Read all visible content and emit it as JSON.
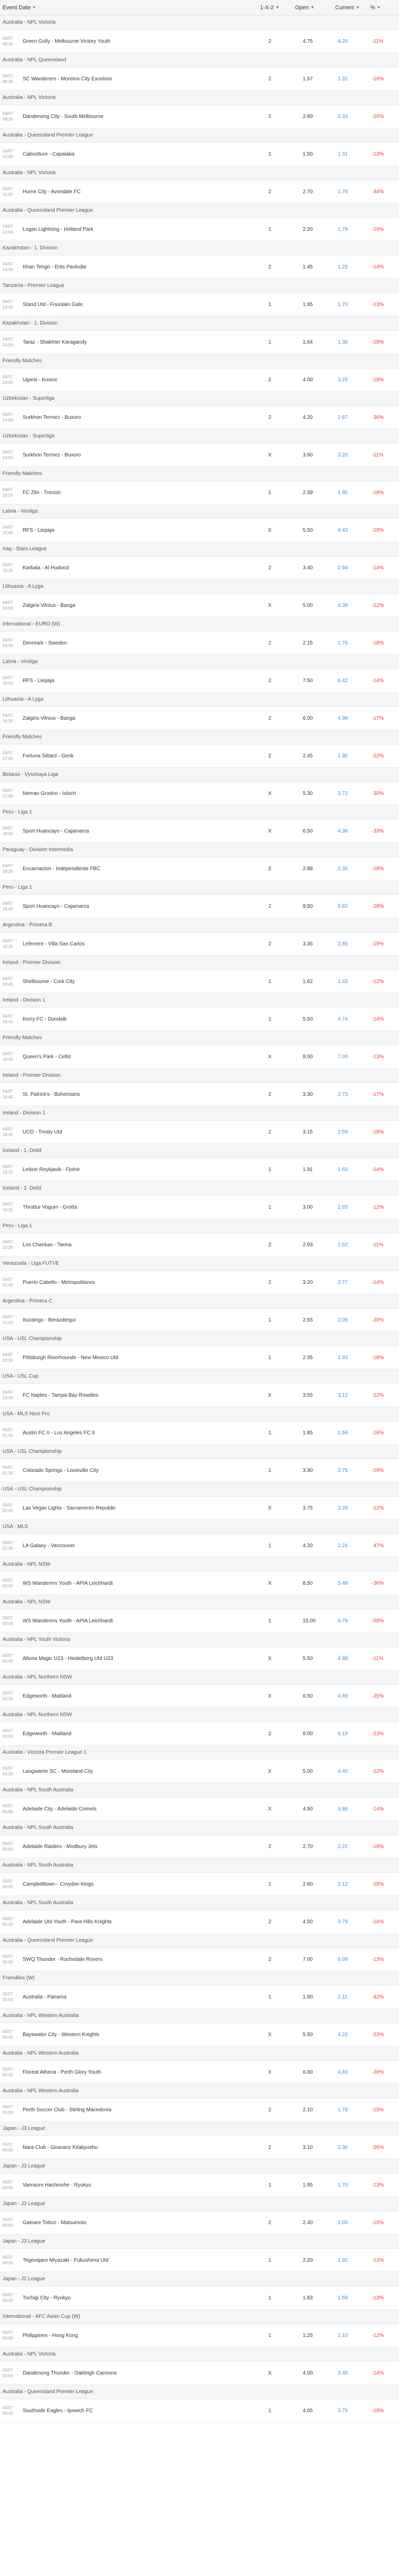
{
  "header": {
    "event_date": "Event Date",
    "type": "1-X-2",
    "open": "Open",
    "current": "Current",
    "pct": "%"
  },
  "groups": [
    {
      "league": "Australia - NPL Victoria",
      "rows": [
        {
          "date": "04/07",
          "time": "08:30",
          "event": "Green Gully - Melbourne Victory Youth",
          "type": "2",
          "open": "4.75",
          "current": "4.25",
          "pct": "-11%"
        }
      ]
    },
    {
      "league": "Australia - NPL Queensland",
      "rows": [
        {
          "date": "04/07",
          "time": "08:30",
          "event": "SC Wanderers - Moreton City Excelsior",
          "type": "2",
          "open": "1.57",
          "current": "1.31",
          "pct": "-16%"
        }
      ]
    },
    {
      "league": "Australia - NPL Victoria",
      "rows": [
        {
          "date": "04/07",
          "time": "08:30",
          "event": "Dandenong City - South Melbourne",
          "type": "2",
          "open": "2.90",
          "current": "2.33",
          "pct": "-20%"
        }
      ]
    },
    {
      "league": "Australia - Queensland Premier League",
      "rows": [
        {
          "date": "04/07",
          "time": "10:00",
          "event": "Caboolture - Capalaba",
          "type": "1",
          "open": "1.50",
          "current": "1.31",
          "pct": "-13%"
        }
      ]
    },
    {
      "league": "Australia - NPL Victoria",
      "rows": [
        {
          "date": "04/07",
          "time": "11:00",
          "event": "Hume City - Avondale FC",
          "type": "2",
          "open": "2.70",
          "current": "1.78",
          "pct": "-34%"
        }
      ]
    },
    {
      "league": "Australia - Queensland Premier League",
      "rows": [
        {
          "date": "04/07",
          "time": "12:00",
          "event": "Logan Lightning - Holland Park",
          "type": "1",
          "open": "2.20",
          "current": "1.79",
          "pct": "-19%"
        }
      ]
    },
    {
      "league": "Kazakhstan - 1. Division",
      "rows": [
        {
          "date": "04/07",
          "time": "13:00",
          "event": "Khan Tengri - Ertis Pavlodar",
          "type": "2",
          "open": "1.45",
          "current": "1.25",
          "pct": "-14%"
        }
      ]
    },
    {
      "league": "Tanzania - Premier League",
      "rows": [
        {
          "date": "04/07",
          "time": "13:00",
          "event": "Stand Utd - Fountain Gate",
          "type": "1",
          "open": "1.95",
          "current": "1.70",
          "pct": "-13%"
        }
      ]
    },
    {
      "league": "Kazakhstan - 1. Division",
      "rows": [
        {
          "date": "04/07",
          "time": "14:00",
          "event": "Taraz - Shakhter Karagandy",
          "type": "1",
          "open": "1.84",
          "current": "1.30",
          "pct": "-29%"
        }
      ]
    },
    {
      "league": "Friendly Matches",
      "rows": [
        {
          "date": "04/07",
          "time": "14:00",
          "event": "Ujpest - Kosice",
          "type": "2",
          "open": "4.00",
          "current": "3.25",
          "pct": "-19%"
        }
      ]
    },
    {
      "league": "Uzbekistan - Superliga",
      "rows": [
        {
          "date": "04/07",
          "time": "14:00",
          "event": "Surkhon Termez - Buxoro",
          "type": "2",
          "open": "4.20",
          "current": "2.67",
          "pct": "-36%"
        }
      ]
    },
    {
      "league": "Uzbekistan - Superliga",
      "rows": [
        {
          "date": "04/07",
          "time": "14:00",
          "event": "Surkhon Termez - Buxoro",
          "type": "X",
          "open": "3.60",
          "current": "3.20",
          "pct": "-11%"
        }
      ]
    },
    {
      "league": "Friendly Matches",
      "rows": [
        {
          "date": "04/07",
          "time": "15:00",
          "event": "FC Zlin - Trencin",
          "type": "1",
          "open": "2.39",
          "current": "1.95",
          "pct": "-18%"
        }
      ]
    },
    {
      "league": "Latvia - Virsliga",
      "rows": [
        {
          "date": "04/07",
          "time": "15:00",
          "event": "RFS - Liepaja",
          "type": "X",
          "open": "5.50",
          "current": "4.43",
          "pct": "-19%"
        }
      ]
    },
    {
      "league": "Iraq - Stars League",
      "rows": [
        {
          "date": "04/07",
          "time": "15:30",
          "event": "Karbala - Al Hudood",
          "type": "2",
          "open": "3.40",
          "current": "2.94",
          "pct": "-14%"
        }
      ]
    },
    {
      "league": "Lithuania - A Lyga",
      "rows": [
        {
          "date": "04/07",
          "time": "16:00",
          "event": "Zalgiris Vilnius - Banga",
          "type": "X",
          "open": "5.00",
          "current": "4.38",
          "pct": "-12%"
        }
      ]
    },
    {
      "league": "International - EURO (W)",
      "rows": [
        {
          "date": "04/07",
          "time": "16:00",
          "event": "Denmark - Sweden",
          "type": "2",
          "open": "2.15",
          "current": "1.76",
          "pct": "-18%"
        }
      ]
    },
    {
      "league": "Latvia - Virsliga",
      "rows": [
        {
          "date": "04/07",
          "time": "16:00",
          "event": "RFS - Liepaja",
          "type": "2",
          "open": "7.50",
          "current": "6.42",
          "pct": "-14%"
        }
      ]
    },
    {
      "league": "Lithuania - A Lyga",
      "rows": [
        {
          "date": "04/07",
          "time": "16:30",
          "event": "Zalgiris Vilnius - Banga",
          "type": "2",
          "open": "6.00",
          "current": "4.98",
          "pct": "-17%"
        }
      ]
    },
    {
      "league": "Friendly Matches",
      "rows": [
        {
          "date": "04/07",
          "time": "17:00",
          "event": "Fortuna Sittard - Genk",
          "type": "2",
          "open": "2.45",
          "current": "1.90",
          "pct": "-22%"
        }
      ]
    },
    {
      "league": "Belarus - Vysshaya Liga",
      "rows": [
        {
          "date": "04/07",
          "time": "17:00",
          "event": "Neman Grodno - Isloch",
          "type": "X",
          "open": "5.30",
          "current": "3.72",
          "pct": "-30%"
        }
      ]
    },
    {
      "league": "Peru - Liga 1",
      "rows": [
        {
          "date": "04/07",
          "time": "18:00",
          "event": "Sport Huancayo - Cajamarca",
          "type": "X",
          "open": "6.50",
          "current": "4.36",
          "pct": "-33%"
        }
      ]
    },
    {
      "league": "Paraguay - Division Intermedia",
      "rows": [
        {
          "date": "04/07",
          "time": "18:30",
          "event": "Encarnacion - Independiente FBC",
          "type": "2",
          "open": "2.88",
          "current": "2.35",
          "pct": "-18%"
        }
      ]
    },
    {
      "league": "Peru - Liga 1",
      "rows": [
        {
          "date": "04/07",
          "time": "18:00",
          "event": "Sport Huancayo - Cajamarca",
          "type": "2",
          "open": "9.50",
          "current": "6.82",
          "pct": "-28%"
        }
      ]
    },
    {
      "league": "Argentina - Primera B",
      "rows": [
        {
          "date": "04/07",
          "time": "18:30",
          "event": "Leferrere - Villa San Carlos",
          "type": "2",
          "open": "3.35",
          "current": "2.85",
          "pct": "-15%"
        }
      ]
    },
    {
      "league": "Ireland - Premier Division",
      "rows": [
        {
          "date": "04/07",
          "time": "18:45",
          "event": "Shelbourne - Cork City",
          "type": "1",
          "open": "1.62",
          "current": "1.43",
          "pct": "-12%"
        }
      ]
    },
    {
      "league": "Ireland - Division 1",
      "rows": [
        {
          "date": "04/07",
          "time": "18:45",
          "event": "Kerry FC - Dundalk",
          "type": "1",
          "open": "5.50",
          "current": "4.74",
          "pct": "-14%"
        }
      ]
    },
    {
      "league": "Friendly Matches",
      "rows": [
        {
          "date": "04/07",
          "time": "18:45",
          "event": "Queen's Park - Celtic",
          "type": "X",
          "open": "8.00",
          "current": "7.00",
          "pct": "-13%"
        }
      ]
    },
    {
      "league": "Ireland - Premier Division",
      "rows": [
        {
          "date": "04/07",
          "time": "18:45",
          "event": "St. Patrick's - Bohemians",
          "type": "2",
          "open": "3.30",
          "current": "2.73",
          "pct": "-17%"
        }
      ]
    },
    {
      "league": "Ireland - Division 1",
      "rows": [
        {
          "date": "04/07",
          "time": "18:45",
          "event": "UCD - Treaty Utd",
          "type": "2",
          "open": "3.15",
          "current": "2.59",
          "pct": "-18%"
        }
      ]
    },
    {
      "league": "Iceland - 1. Deild",
      "rows": [
        {
          "date": "04/07",
          "time": "19:15",
          "event": "Leiknir Reykjavik - Fjolnir",
          "type": "1",
          "open": "1.91",
          "current": "1.65",
          "pct": "-14%"
        }
      ]
    },
    {
      "league": "Iceland - 2. Deild",
      "rows": [
        {
          "date": "04/07",
          "time": "19:15",
          "event": "Throttur Vogum - Grotta",
          "type": "1",
          "open": "3.00",
          "current": "2.65",
          "pct": "-12%"
        }
      ]
    },
    {
      "league": "Peru - Liga 1",
      "rows": [
        {
          "date": "04/07",
          "time": "20:30",
          "event": "Los Chankas - Tarma",
          "type": "2",
          "open": "2.93",
          "current": "2.62",
          "pct": "-11%"
        }
      ]
    },
    {
      "league": "Venezuela - Liga FUTVE",
      "rows": [
        {
          "date": "04/07",
          "time": "21:00",
          "event": "Puerto Cabello - Metropolitanos",
          "type": "2",
          "open": "3.20",
          "current": "2.77",
          "pct": "-14%"
        }
      ]
    },
    {
      "league": "Argentina - Primera C",
      "rows": [
        {
          "date": "04/07",
          "time": "21:00",
          "event": "Ituzaingo - Berazategui",
          "type": "1",
          "open": "2.55",
          "current": "2.05",
          "pct": "-20%"
        }
      ]
    },
    {
      "league": "USA - USL Championship",
      "rows": [
        {
          "date": "04/07",
          "time": "23:30",
          "event": "Pittsburgh Riverhounds - New Mexico Utd",
          "type": "1",
          "open": "2.35",
          "current": "1.93",
          "pct": "-18%"
        }
      ]
    },
    {
      "league": "USA - USL Cup",
      "rows": [
        {
          "date": "04/07",
          "time": "23:30",
          "event": "FC Naples - Tampa Bay Rowdies",
          "type": "X",
          "open": "3.55",
          "current": "3.12",
          "pct": "-12%"
        }
      ]
    },
    {
      "league": "USA - MLS Next Pro",
      "rows": [
        {
          "date": "05/07",
          "time": "01:00",
          "event": "Austin FC II - Los Angeles FC II",
          "type": "1",
          "open": "1.85",
          "current": "1.56",
          "pct": "-16%"
        }
      ]
    },
    {
      "league": "USA - USL Championship",
      "rows": [
        {
          "date": "05/07",
          "time": "01:30",
          "event": "Colorado Springs - Louisville City",
          "type": "1",
          "open": "3.90",
          "current": "2.75",
          "pct": "-29%"
        }
      ]
    },
    {
      "league": "USA - USL Championship",
      "rows": [
        {
          "date": "05/07",
          "time": "02:00",
          "event": "Las Vegas Lights - Sacramento Republic",
          "type": "X",
          "open": "3.75",
          "current": "3.29",
          "pct": "-12%"
        }
      ]
    },
    {
      "league": "USA - MLS",
      "rows": [
        {
          "date": "05/07",
          "time": "02:30",
          "event": "LA Galaxy - Vancouver",
          "type": "1",
          "open": "4.20",
          "current": "2.24",
          "pct": "-47%"
        }
      ]
    },
    {
      "league": "Australia - NPL NSW",
      "rows": [
        {
          "date": "05/07",
          "time": "03:00",
          "event": "WS Wanderers Youth - APIA Leichhardt",
          "type": "X",
          "open": "8.50",
          "current": "5.48",
          "pct": "-36%"
        }
      ]
    },
    {
      "league": "Australia - NPL NSW",
      "rows": [
        {
          "date": "05/07",
          "time": "03:00",
          "event": "WS Wanderers Youth - APIA Leichhardt",
          "type": "1",
          "open": "15.00",
          "current": "6.79",
          "pct": "-55%"
        }
      ]
    },
    {
      "league": "Australia - NPL Youth Victoria",
      "rows": [
        {
          "date": "05/07",
          "time": "03:00",
          "event": "Altona Magic U23 - Heidelberg Utd U23",
          "type": "X",
          "open": "5.50",
          "current": "4.89",
          "pct": "-11%"
        }
      ]
    },
    {
      "league": "Australia - NPL Northern NSW",
      "rows": [
        {
          "date": "05/07",
          "time": "03:30",
          "event": "Edgeworth - Maitland",
          "type": "X",
          "open": "6.50",
          "current": "4.89",
          "pct": "-25%"
        }
      ]
    },
    {
      "league": "Australia - NPL Northern NSW",
      "rows": [
        {
          "date": "05/07",
          "time": "04:00",
          "event": "Edgeworth - Maitland",
          "type": "2",
          "open": "8.00",
          "current": "6.19",
          "pct": "-23%"
        }
      ]
    },
    {
      "league": "Australia - Victoria Premier League 1",
      "rows": [
        {
          "date": "05/07",
          "time": "04:30",
          "event": "Langwarrin SC - Moreland City",
          "type": "X",
          "open": "5.00",
          "current": "4.40",
          "pct": "-12%"
        }
      ]
    },
    {
      "league": "Australia - NPL South Australia",
      "rows": [
        {
          "date": "05/07",
          "time": "05:00",
          "event": "Adelaide City - Adelaide Comets",
          "type": "X",
          "open": "4.50",
          "current": "3.86",
          "pct": "-14%"
        }
      ]
    },
    {
      "league": "Australia - NPL South Australia",
      "rows": [
        {
          "date": "05/07",
          "time": "05:00",
          "event": "Adelaide Raiders - Modbury Jets",
          "type": "2",
          "open": "2.70",
          "current": "2.21",
          "pct": "-18%"
        }
      ]
    },
    {
      "league": "Australia - NPL South Australia",
      "rows": [
        {
          "date": "05/07",
          "time": "05:00",
          "event": "Campbelltown - Croydon Kings",
          "type": "1",
          "open": "2.60",
          "current": "2.12",
          "pct": "-18%"
        }
      ]
    },
    {
      "league": "Australia - NPL South Australia",
      "rows": [
        {
          "date": "05/07",
          "time": "05:00",
          "event": "Adelaide Utd Youth - Para Hills Knights",
          "type": "2",
          "open": "4.50",
          "current": "3.79",
          "pct": "-16%"
        }
      ]
    },
    {
      "league": "Australia - Queensland Premier League",
      "rows": [
        {
          "date": "05/07",
          "time": "05:00",
          "event": "SWQ Thunder - Rochedale Rovers",
          "type": "2",
          "open": "7.00",
          "current": "6.09",
          "pct": "-13%"
        }
      ]
    },
    {
      "league": "Friendlies (W)",
      "rows": [
        {
          "date": "05/07",
          "time": "05:00",
          "event": "Australia - Panama",
          "type": "1",
          "open": "1.90",
          "current": "1.11",
          "pct": "-42%"
        }
      ]
    },
    {
      "league": "Australia - NPL Western Australia",
      "rows": [
        {
          "date": "05/07",
          "time": "05:00",
          "event": "Bayswater City - Western Knights",
          "type": "X",
          "open": "5.50",
          "current": "4.22",
          "pct": "-23%"
        }
      ]
    },
    {
      "league": "Australia - NPL Western Australia",
      "rows": [
        {
          "date": "05/07",
          "time": "05:00",
          "event": "Floreat Athena - Perth Glory Youth",
          "type": "X",
          "open": "6.00",
          "current": "4.83",
          "pct": "-20%"
        }
      ]
    },
    {
      "league": "Australia - NPL Western Australia",
      "rows": [
        {
          "date": "05/07",
          "time": "05:00",
          "event": "Perth Soccer Club - Stirling Macedonia",
          "type": "2",
          "open": "2.10",
          "current": "1.79",
          "pct": "-15%"
        }
      ]
    },
    {
      "league": "Japan - J3 League",
      "rows": [
        {
          "date": "05/07",
          "time": "09:00",
          "event": "Nara Club - Giravanz Kitakyushu",
          "type": "2",
          "open": "3.10",
          "current": "2.30",
          "pct": "-26%"
        }
      ]
    },
    {
      "league": "Japan - J3 League",
      "rows": [
        {
          "date": "05/07",
          "time": "09:00",
          "event": "Vanraure Hachinohe - Ryukyu",
          "type": "1",
          "open": "1.95",
          "current": "1.70",
          "pct": "-13%"
        }
      ]
    },
    {
      "league": "Japan - J3 League",
      "rows": [
        {
          "date": "05/07",
          "time": "09:00",
          "event": "Gainare Tottori - Matsumoto",
          "type": "2",
          "open": "2.40",
          "current": "2.05",
          "pct": "-15%"
        }
      ]
    },
    {
      "league": "Japan - J3 League",
      "rows": [
        {
          "date": "05/07",
          "time": "09:00",
          "event": "Tegevajaro Miyazaki - Fukushima Utd",
          "type": "1",
          "open": "2.20",
          "current": "1.92",
          "pct": "-13%"
        }
      ]
    },
    {
      "league": "Japan - J2 League",
      "rows": [
        {
          "date": "05/07",
          "time": "09:00",
          "event": "Tochigi City - Ryukyu",
          "type": "1",
          "open": "1.83",
          "current": "1.59",
          "pct": "-13%"
        }
      ]
    },
    {
      "league": "International - AFC Asian Cup (W)",
      "rows": [
        {
          "date": "05/07",
          "time": "09:00",
          "event": "Philippines - Hong Kong",
          "type": "1",
          "open": "1.25",
          "current": "1.10",
          "pct": "-12%"
        }
      ]
    },
    {
      "league": "Australia - NPL Victoria",
      "rows": [
        {
          "date": "05/07",
          "time": "09:00",
          "event": "Dandenong Thunder - Oakleigh Cannons",
          "type": "X",
          "open": "4.00",
          "current": "3.45",
          "pct": "-14%"
        }
      ]
    },
    {
      "league": "Australia - Queensland Premier League",
      "rows": [
        {
          "date": "05/07",
          "time": "09:00",
          "event": "Southside Eagles - Ipswich FC",
          "type": "1",
          "open": "4.65",
          "current": "3.75",
          "pct": "-19%"
        }
      ]
    }
  ]
}
